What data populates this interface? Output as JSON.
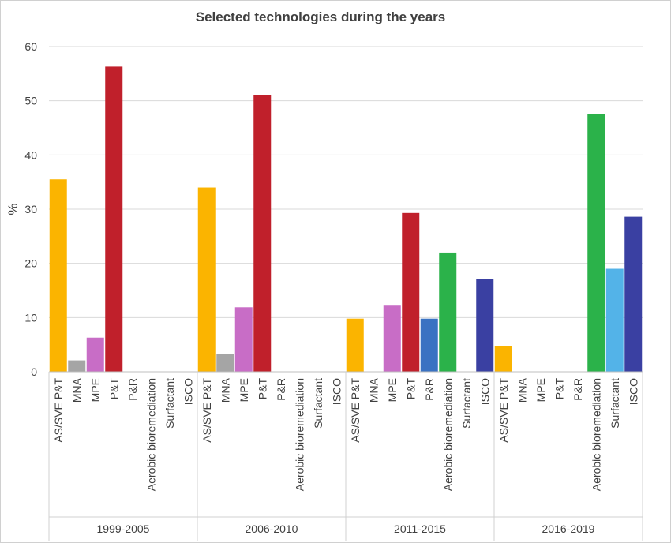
{
  "chart_data": {
    "type": "bar",
    "title": "Selected technologies during the years",
    "ylabel": "%",
    "ylim": [
      0,
      60
    ],
    "yticks": [
      0,
      10,
      20,
      30,
      40,
      50,
      60
    ],
    "grid": true,
    "categories": [
      "AS/SVE P&T",
      "MNA",
      "MPE",
      "P&T",
      "P&R",
      "Aerobic bioremediation",
      "Surfactant",
      "ISCO"
    ],
    "colors": [
      "#fbb400",
      "#a5a5a5",
      "#c86dc6",
      "#c0202b",
      "#3a72c2",
      "#2bb24a",
      "#53b3e8",
      "#3a40a2"
    ],
    "groups": [
      {
        "name": "1999-2005",
        "values": [
          35.5,
          2.1,
          6.3,
          56.3,
          0,
          0,
          0,
          0
        ]
      },
      {
        "name": "2006-2010",
        "values": [
          34.0,
          3.3,
          11.9,
          51.0,
          0,
          0,
          0,
          0
        ]
      },
      {
        "name": "2011-2015",
        "values": [
          9.8,
          0,
          12.2,
          29.3,
          9.8,
          22.0,
          0,
          17.1
        ]
      },
      {
        "name": "2016-2019",
        "values": [
          4.8,
          0,
          0,
          0,
          0,
          47.6,
          19.0,
          28.6
        ]
      }
    ]
  }
}
